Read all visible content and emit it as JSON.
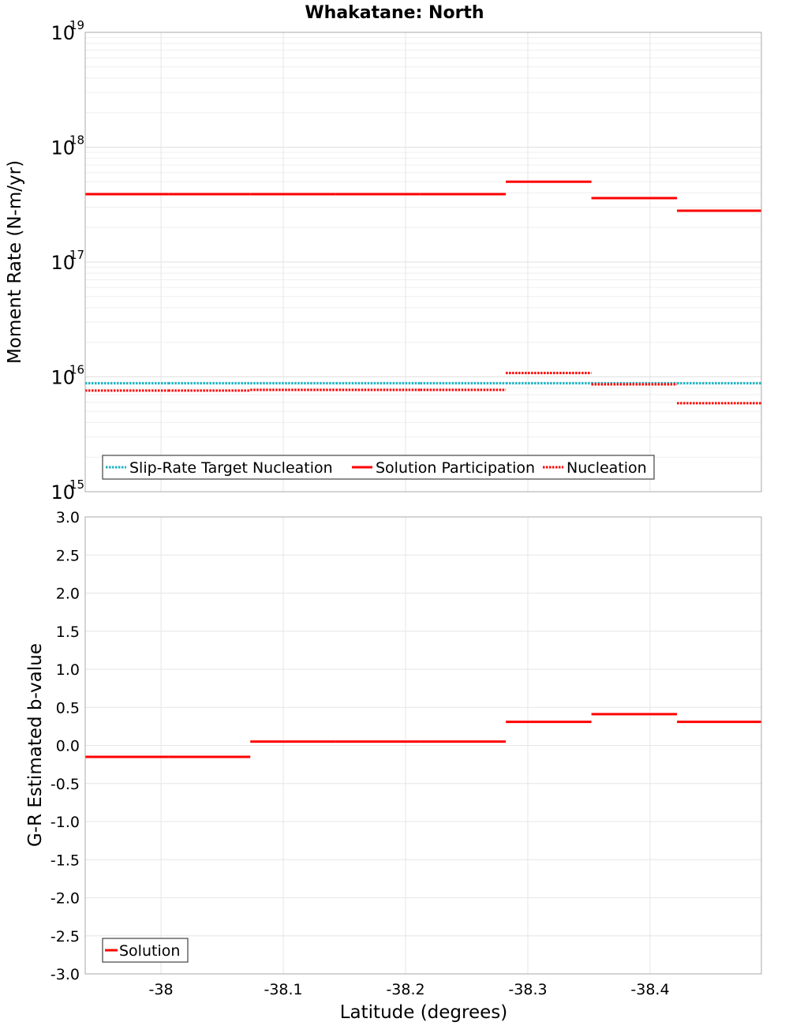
{
  "chart_data": {
    "title": "Whakatane: North",
    "type": "line",
    "xlabel": "Latitude (degrees)",
    "xlim": [
      -37.938,
      -38.491
    ],
    "x_reversed": true,
    "xticks": [
      -38,
      -38.1,
      -38.2,
      -38.3,
      -38.4
    ],
    "xtick_labels": [
      "-38",
      "-38.1",
      "-38.2",
      "-38.3",
      "-38.4"
    ],
    "segments": [
      {
        "from": -37.938,
        "to": -38.006
      },
      {
        "from": -38.006,
        "to": -38.073
      },
      {
        "from": -38.073,
        "to": -38.143
      },
      {
        "from": -38.143,
        "to": -38.212
      },
      {
        "from": -38.212,
        "to": -38.282
      },
      {
        "from": -38.282,
        "to": -38.352
      },
      {
        "from": -38.352,
        "to": -38.422
      },
      {
        "from": -38.422,
        "to": -38.491
      }
    ],
    "top_panel": {
      "ylabel": "Moment Rate (N-m/yr)",
      "yscale": "log",
      "ylim": [
        1000000000000000.0,
        1e+19
      ],
      "ytick_bases": [
        "10",
        "10",
        "10",
        "10",
        "10"
      ],
      "ytick_exponents": [
        "15",
        "16",
        "17",
        "18",
        "19"
      ],
      "legend_position": "bottom-left",
      "series": [
        {
          "name": "Slip-Rate Target Nucleation",
          "style": "dotted",
          "color": "#19b3c3",
          "values": [
            8800000000000000.0,
            8800000000000000.0,
            8800000000000000.0,
            8800000000000000.0,
            8800000000000000.0,
            8800000000000000.0,
            8800000000000000.0,
            8800000000000000.0
          ]
        },
        {
          "name": "Solution Participation",
          "style": "solid",
          "color": "#ff0000",
          "values": [
            3.9e+17,
            3.9e+17,
            3.9e+17,
            3.9e+17,
            3.9e+17,
            5e+17,
            3.6e+17,
            2.8e+17
          ]
        },
        {
          "name": "Nucleation",
          "style": "dotted",
          "color": "#ff0000",
          "values": [
            7600000000000000.0,
            7600000000000000.0,
            7700000000000000.0,
            7700000000000000.0,
            7700000000000000.0,
            1.08e+16,
            8600000000000000.0,
            5900000000000000.0
          ]
        }
      ]
    },
    "bottom_panel": {
      "ylabel": "G-R Estimated b-value",
      "yscale": "linear",
      "ylim": [
        -3.0,
        3.0
      ],
      "yticks": [
        3.0,
        2.5,
        2.0,
        1.5,
        1.0,
        0.5,
        0.0,
        -0.5,
        -1.0,
        -1.5,
        -2.0,
        -2.5,
        -3.0
      ],
      "ytick_labels": [
        "3.0",
        "2.5",
        "2.0",
        "1.5",
        "1.0",
        "0.5",
        "0.0",
        "-0.5",
        "-1.0",
        "-1.5",
        "-2.0",
        "-2.5",
        "-3.0"
      ],
      "legend_position": "bottom-left",
      "series": [
        {
          "name": "Solution",
          "style": "solid",
          "color": "#ff0000",
          "values": [
            -0.15,
            -0.15,
            0.05,
            0.05,
            0.05,
            0.31,
            0.41,
            0.31
          ]
        }
      ]
    }
  }
}
